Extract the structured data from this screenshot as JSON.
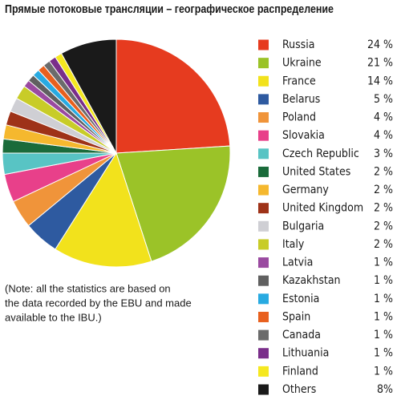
{
  "chart_data": {
    "type": "pie",
    "title": "Прямые потоковые трансляции – географическое распределение",
    "categories": [
      "Russia",
      "Ukraine",
      "France",
      "Belarus",
      "Poland",
      "Slovakia",
      "Czech Republic",
      "United States",
      "Germany",
      "United Kingdom",
      "Bulgaria",
      "Italy",
      "Latvia",
      "Kazakhstan",
      "Estonia",
      "Spain",
      "Canada",
      "Lithuania",
      "Finland",
      "Others"
    ],
    "values": [
      24,
      21,
      14,
      5,
      4,
      4,
      3,
      2,
      2,
      2,
      2,
      2,
      1,
      1,
      1,
      1,
      1,
      1,
      1,
      8
    ],
    "value_labels": [
      "24 %",
      "21 %",
      "14 %",
      "5 %",
      "4 %",
      "4 %",
      "3 %",
      "2 %",
      "2 %",
      "2 %",
      "2 %",
      "2 %",
      "1 %",
      "1 %",
      "1 %",
      "1 %",
      "1 %",
      "1 %",
      "1 %",
      "8%"
    ],
    "colors": [
      "#e63b1f",
      "#9bc328",
      "#f2e21c",
      "#2e5aa0",
      "#f0943a",
      "#e8408a",
      "#58c4c4",
      "#1a6b3a",
      "#f5b82e",
      "#9e3218",
      "#cfcfd4",
      "#c8cc28",
      "#9a4aa0",
      "#606060",
      "#28aae1",
      "#e8601e",
      "#6b6b6b",
      "#7a2e8a",
      "#f5e820",
      "#1a1a1a"
    ],
    "legend": "right",
    "note": [
      "(Note: all the statistics are based on",
      "the data recorded by the EBU and made",
      "available to the IBU.)"
    ]
  }
}
